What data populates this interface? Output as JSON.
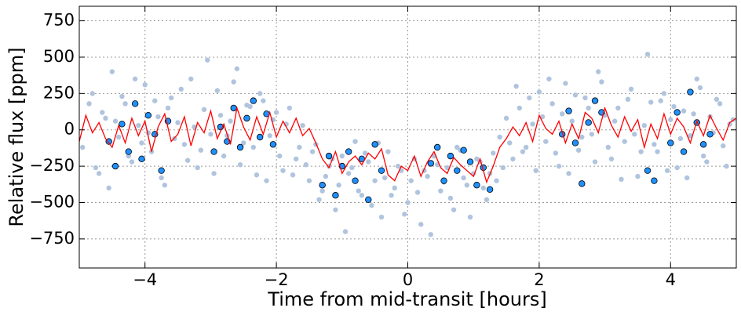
{
  "chart_data": {
    "type": "scatter",
    "xlabel": "Time from mid-transit [hours]",
    "ylabel": "Relative flux [ppm]",
    "xlim": [
      -5,
      5
    ],
    "ylim": [
      -950,
      850
    ],
    "xticks": [
      {
        "value": -4,
        "label": "−4"
      },
      {
        "value": -2,
        "label": "−2"
      },
      0,
      2,
      4
    ],
    "yticks": [
      {
        "value": -750,
        "label": "−750"
      },
      {
        "value": -500,
        "label": "−500"
      },
      {
        "value": -250,
        "label": "−250"
      },
      0,
      250,
      500,
      750
    ],
    "grid": true,
    "series": [
      {
        "type": "scatter",
        "color": "#b0c4de",
        "x": [
          -4.95,
          -4.8,
          -4.7,
          -4.6,
          -4.5,
          -4.4,
          -4.3,
          -4.2,
          -4.1,
          -4.0,
          -3.9,
          -3.8,
          -3.7,
          -3.6,
          -3.5,
          -3.4,
          -3.3,
          -3.2,
          -3.1,
          -3.0,
          -2.9,
          -2.8,
          -2.7,
          -2.6,
          -2.5,
          -2.4,
          -2.3,
          -2.2,
          -2.1,
          -2.0,
          -1.9,
          -1.8,
          -1.7,
          -1.6,
          -1.5,
          -1.4,
          -1.3,
          -1.2,
          -1.1,
          -1.0,
          -0.9,
          -0.8,
          -0.7,
          -0.6,
          -0.5,
          -0.4,
          -0.3,
          -0.2,
          -0.1,
          0.0,
          0.1,
          0.2,
          0.3,
          0.4,
          0.5,
          0.6,
          0.7,
          0.8,
          0.9,
          1.0,
          1.1,
          1.2,
          1.3,
          1.4,
          1.5,
          1.6,
          1.7,
          1.8,
          1.9,
          2.0,
          2.1,
          2.2,
          2.3,
          2.4,
          2.5,
          2.6,
          2.7,
          2.8,
          2.9,
          3.0,
          3.1,
          3.2,
          3.3,
          3.4,
          3.5,
          3.6,
          3.7,
          3.8,
          3.9,
          4.0,
          4.1,
          4.2,
          4.3,
          4.4,
          4.5,
          4.6,
          4.7,
          4.8,
          4.9
        ],
        "values": [
          -120,
          250,
          -300,
          80,
          400,
          -50,
          180,
          -220,
          30,
          310,
          -150,
          90,
          -380,
          220,
          50,
          -100,
          350,
          -260,
          140,
          -30,
          270,
          -180,
          60,
          420,
          -90,
          160,
          -310,
          200,
          -40,
          120,
          -280,
          150,
          -200,
          30,
          -350,
          -100,
          -420,
          -250,
          -550,
          -180,
          -300,
          -80,
          -450,
          -220,
          -350,
          -600,
          -150,
          -400,
          -280,
          -500,
          -200,
          -650,
          -320,
          -180,
          -420,
          -260,
          -550,
          -140,
          -380,
          -300,
          -220,
          -480,
          -160,
          -50,
          80,
          -200,
          150,
          -120,
          40,
          260,
          -80,
          180,
          -250,
          320,
          60,
          -140,
          220,
          -30,
          400,
          100,
          -200,
          150,
          -80,
          280,
          -320,
          30,
          190,
          -150,
          250,
          70,
          -260,
          130,
          -40,
          350,
          -180,
          90,
          210,
          -110,
          40
        ]
      },
      {
        "type": "scatter",
        "color": "#b0c4de",
        "x": [
          -4.85,
          -4.75,
          -4.65,
          -4.55,
          -4.45,
          -4.35,
          -4.25,
          -4.15,
          -4.05,
          -3.95,
          -3.85,
          -3.75,
          -3.65,
          -3.55,
          -3.45,
          -3.35,
          -3.25,
          -3.15,
          -3.05,
          -2.95,
          -2.85,
          -2.75,
          -2.65,
          -2.55,
          -2.45,
          -2.35,
          -2.25,
          -2.15,
          -2.05,
          -1.95,
          -1.85,
          -1.75,
          -1.65,
          -1.55,
          -1.45,
          -1.35,
          -1.25,
          -1.15,
          -1.05,
          -0.95,
          -0.85,
          -0.75,
          -0.65,
          -0.55,
          -0.45,
          -0.35,
          -0.25,
          -0.15,
          -0.05,
          0.05,
          0.15,
          0.25,
          0.35,
          0.45,
          0.55,
          0.65,
          0.75,
          0.85,
          0.95,
          1.05,
          1.15,
          1.25,
          1.35,
          1.45,
          1.55,
          1.65,
          1.75,
          1.85,
          1.95,
          2.05,
          2.15,
          2.25,
          2.35,
          2.45,
          2.55,
          2.65,
          2.75,
          2.85,
          2.95,
          3.05,
          3.15,
          3.25,
          3.35,
          3.45,
          3.55,
          3.65,
          3.75,
          3.85,
          3.95,
          4.05,
          4.15,
          4.25,
          4.35,
          4.45,
          4.55,
          4.65,
          4.75,
          4.85,
          4.95
        ],
        "values": [
          180,
          -260,
          120,
          -400,
          60,
          230,
          -180,
          350,
          -90,
          -20,
          200,
          -330,
          150,
          -60,
          280,
          -210,
          20,
          -140,
          480,
          -300,
          100,
          -40,
          330,
          -240,
          170,
          -120,
          250,
          -350,
          70,
          -180,
          40,
          -310,
          -120,
          -240,
          -150,
          -480,
          -320,
          -200,
          -380,
          -700,
          -260,
          -420,
          -160,
          -520,
          -90,
          -330,
          -450,
          -250,
          -580,
          -350,
          -430,
          -280,
          -720,
          -240,
          -360,
          -470,
          -120,
          -330,
          -600,
          -200,
          -400,
          -300,
          -350,
          -260,
          -90,
          300,
          -150,
          220,
          -280,
          90,
          350,
          -160,
          110,
          -300,
          240,
          -50,
          150,
          -220,
          330,
          -120,
          60,
          -340,
          210,
          -30,
          -150,
          520,
          -100,
          200,
          -280,
          160,
          -60,
          -330,
          110,
          290,
          -220,
          -20,
          180,
          -250,
          70
        ]
      },
      {
        "type": "scatter",
        "color": "#1e90ff",
        "edgecolor": "#000000",
        "x": [
          -4.55,
          -4.45,
          -4.35,
          -4.25,
          -4.15,
          -4.05,
          -3.95,
          -3.85,
          -3.75,
          -3.65,
          -2.95,
          -2.85,
          -2.75,
          -2.65,
          -2.55,
          -2.45,
          -2.35,
          -2.25,
          -2.15,
          -2.05,
          -1.3,
          -1.2,
          -1.1,
          -1.0,
          -0.9,
          -0.8,
          -0.7,
          -0.6,
          -0.5,
          -0.4,
          0.35,
          0.45,
          0.55,
          0.65,
          0.75,
          0.85,
          0.95,
          1.05,
          1.15,
          1.25,
          2.35,
          2.45,
          2.55,
          2.65,
          2.75,
          2.85,
          2.95,
          3.65,
          3.75,
          4.0,
          4.1,
          4.2,
          4.3,
          4.4,
          4.5,
          4.6
        ],
        "values": [
          -80,
          -250,
          40,
          -150,
          180,
          -200,
          100,
          -30,
          -280,
          60,
          -150,
          20,
          -80,
          150,
          -120,
          80,
          200,
          -50,
          110,
          -100,
          -380,
          -180,
          -450,
          -250,
          -150,
          -350,
          -200,
          -480,
          -100,
          -280,
          -230,
          -120,
          -350,
          -180,
          -280,
          -140,
          -220,
          -380,
          -260,
          -410,
          -30,
          130,
          -90,
          -370,
          50,
          200,
          120,
          -280,
          -350,
          -90,
          120,
          -150,
          260,
          50,
          -100,
          -30
        ]
      },
      {
        "type": "line",
        "color": "#ff0000",
        "x": [
          -5.0,
          -4.9,
          -4.8,
          -4.7,
          -4.6,
          -4.5,
          -4.4,
          -4.3,
          -4.2,
          -4.1,
          -4.0,
          -3.9,
          -3.8,
          -3.7,
          -3.6,
          -3.5,
          -3.4,
          -3.3,
          -3.2,
          -3.1,
          -3.0,
          -2.9,
          -2.8,
          -2.7,
          -2.6,
          -2.5,
          -2.4,
          -2.3,
          -2.2,
          -2.1,
          -2.0,
          -1.9,
          -1.8,
          -1.7,
          -1.6,
          -1.5,
          -1.4,
          -1.3,
          -1.2,
          -1.1,
          -1.0,
          -0.9,
          -0.8,
          -0.7,
          -0.6,
          -0.5,
          -0.4,
          -0.3,
          -0.2,
          -0.1,
          0.0,
          0.1,
          0.2,
          0.3,
          0.4,
          0.5,
          0.6,
          0.7,
          0.8,
          0.9,
          1.0,
          1.1,
          1.2,
          1.3,
          1.4,
          1.5,
          1.6,
          1.7,
          1.8,
          1.9,
          2.0,
          2.1,
          2.2,
          2.3,
          2.4,
          2.5,
          2.6,
          2.7,
          2.8,
          2.9,
          3.0,
          3.1,
          3.2,
          3.3,
          3.4,
          3.5,
          3.6,
          3.7,
          3.8,
          3.9,
          4.0,
          4.1,
          4.2,
          4.3,
          4.4,
          4.5,
          4.6,
          4.7,
          4.8,
          4.9,
          5.0
        ],
        "values": [
          -80,
          100,
          -20,
          50,
          -60,
          -120,
          30,
          -90,
          80,
          -40,
          60,
          -150,
          20,
          110,
          -80,
          -30,
          90,
          -110,
          50,
          -20,
          130,
          -60,
          40,
          -100,
          150,
          20,
          -70,
          90,
          -30,
          120,
          -50,
          60,
          -20,
          80,
          -40,
          10,
          -90,
          -200,
          -260,
          -150,
          -300,
          -220,
          -180,
          -240,
          -160,
          -200,
          -130,
          -310,
          -350,
          -250,
          -280,
          -180,
          -320,
          -220,
          -150,
          -260,
          -300,
          -190,
          -240,
          -280,
          -320,
          -200,
          -360,
          -250,
          -120,
          -60,
          20,
          -40,
          50,
          -80,
          100,
          10,
          -30,
          60,
          -90,
          40,
          -60,
          120,
          80,
          -20,
          150,
          30,
          -50,
          90,
          -10,
          70,
          -120,
          40,
          -60,
          110,
          -30,
          80,
          20,
          -90,
          60,
          -40,
          100,
          10,
          -70,
          50,
          80
        ]
      }
    ]
  }
}
